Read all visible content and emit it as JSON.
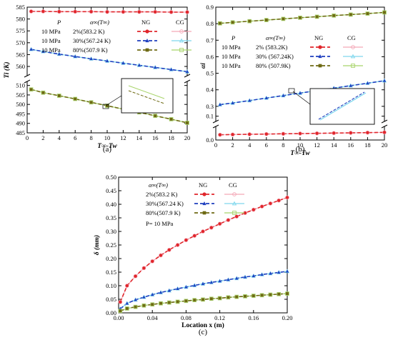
{
  "chart_data": [
    {
      "id": "a",
      "type": "line",
      "caption": "(a)",
      "xlabel": "T∞-Tw",
      "ylabel": "Ti (K)",
      "xlim": [
        0,
        20
      ],
      "xticks": [
        0,
        2,
        4,
        6,
        8,
        10,
        12,
        14,
        16,
        18,
        20
      ],
      "ybreak": true,
      "yticks_upper": [
        560,
        565,
        570,
        575,
        580,
        585
      ],
      "yticks_lower": [
        485,
        490,
        495,
        500,
        505,
        510
      ],
      "legend": {
        "head_p": "P",
        "head_alpha": "α∞(T∞)",
        "head_ng": "NG",
        "head_cg": "CG",
        "rows": [
          {
            "p": "10 MPa",
            "alpha": "2%(583.2 K)"
          },
          {
            "p": "10 MPa",
            "alpha": "30%(567.24 K)"
          },
          {
            "p": "10 MPa",
            "alpha": "80%(507.9 K)"
          }
        ]
      },
      "series": [
        {
          "color": "#e0262b",
          "cg_color": "#f4a9b8",
          "marker": "circle",
          "x": [
            0.5,
            2,
            4,
            6,
            8,
            10,
            12,
            14,
            16,
            18,
            20
          ],
          "y": [
            583.2,
            583.2,
            583.1,
            583.1,
            583.1,
            583.0,
            583.0,
            583.0,
            583.0,
            582.9,
            582.9
          ]
        },
        {
          "color": "#1f3fbf",
          "cg_color": "#7fd8ee",
          "marker": "triangle",
          "x": [
            0.5,
            2,
            4,
            6,
            8,
            10,
            12,
            14,
            16,
            18,
            20
          ],
          "y": [
            567.2,
            566.3,
            565.2,
            564.2,
            563.2,
            562.3,
            561.4,
            560.5,
            559.6,
            558.7,
            557.8
          ]
        },
        {
          "color": "#6e6a14",
          "cg_color": "#a8d46a",
          "marker": "square",
          "x": [
            0.5,
            2,
            4,
            6,
            8,
            10,
            12,
            14,
            16,
            18,
            20
          ],
          "y": [
            507.9,
            506.2,
            504.6,
            502.9,
            501.1,
            499.3,
            497.5,
            495.8,
            494.0,
            492.2,
            490.3
          ]
        }
      ]
    },
    {
      "id": "b",
      "type": "line",
      "caption": "(b)",
      "xlabel": "T∞-Tw",
      "ylabel": "αi",
      "xlim": [
        0,
        20
      ],
      "xticks": [
        0,
        2,
        4,
        6,
        8,
        10,
        12,
        14,
        16,
        18,
        20
      ],
      "ybreak": true,
      "yticks": [
        0.0,
        0.1,
        0.3,
        0.4,
        0.5,
        0.6,
        0.7,
        0.8,
        0.9
      ],
      "legend": {
        "head_p": "P",
        "head_alpha": "α∞(T∞)",
        "head_ng": "NG",
        "head_cg": "CG",
        "rows": [
          {
            "p": "10 MPa",
            "alpha": "2% (583.2K)"
          },
          {
            "p": "10 MPa",
            "alpha": "30% (567.24K)"
          },
          {
            "p": "10 MPa",
            "alpha": "80% (507.9K)"
          }
        ]
      },
      "series": [
        {
          "color": "#e0262b",
          "cg_color": "#f4a9b8",
          "marker": "circle",
          "x": [
            0.5,
            2,
            4,
            6,
            8,
            10,
            12,
            14,
            16,
            18,
            20
          ],
          "y": [
            0.022,
            0.023,
            0.024,
            0.025,
            0.026,
            0.027,
            0.028,
            0.029,
            0.03,
            0.031,
            0.032
          ]
        },
        {
          "color": "#1f3fbf",
          "cg_color": "#7fd8ee",
          "marker": "triangle",
          "x": [
            0.5,
            2,
            4,
            6,
            8,
            10,
            12,
            14,
            16,
            18,
            20
          ],
          "y": [
            0.31,
            0.32,
            0.335,
            0.35,
            0.365,
            0.38,
            0.395,
            0.41,
            0.425,
            0.44,
            0.455
          ]
        },
        {
          "color": "#6e6a14",
          "cg_color": "#a8d46a",
          "marker": "square",
          "x": [
            0.5,
            2,
            4,
            6,
            8,
            10,
            12,
            14,
            16,
            18,
            20
          ],
          "y": [
            0.802,
            0.808,
            0.815,
            0.822,
            0.829,
            0.836,
            0.842,
            0.849,
            0.855,
            0.861,
            0.868
          ]
        }
      ]
    },
    {
      "id": "c",
      "type": "line",
      "caption": "(c)",
      "xlabel": "Location x (m)",
      "ylabel": "δ (mm)",
      "xlim": [
        0,
        0.2
      ],
      "ylim": [
        0,
        0.5
      ],
      "xticks": [
        "0.00",
        "0.04",
        "0.08",
        "0.12",
        "0.16",
        "0.20"
      ],
      "yticks": [
        "0.00",
        "0.05",
        "0.10",
        "0.15",
        "0.20",
        "0.25",
        "0.30",
        "0.35",
        "0.40",
        "0.45",
        "0.50"
      ],
      "legend": {
        "head_alpha": "α∞(T∞)",
        "head_ng": "NG",
        "head_cg": "CG",
        "rows": [
          {
            "alpha": "2%(583.2 K)"
          },
          {
            "alpha": "30%(567.24 K)"
          },
          {
            "alpha": "80%(507.9 K)"
          }
        ],
        "note": "P= 10 MPa"
      },
      "series": [
        {
          "color": "#e0262b",
          "cg_color": "#f4a9b8",
          "marker": "circle",
          "x": [
            0.002,
            0.01,
            0.02,
            0.03,
            0.04,
            0.05,
            0.06,
            0.07,
            0.08,
            0.09,
            0.1,
            0.11,
            0.12,
            0.13,
            0.14,
            0.15,
            0.16,
            0.17,
            0.18,
            0.19,
            0.2
          ],
          "y": [
            0.04,
            0.1,
            0.135,
            0.165,
            0.19,
            0.212,
            0.232,
            0.25,
            0.268,
            0.284,
            0.3,
            0.314,
            0.328,
            0.342,
            0.355,
            0.368,
            0.38,
            0.392,
            0.403,
            0.414,
            0.425
          ]
        },
        {
          "color": "#1f3fbf",
          "cg_color": "#7fd8ee",
          "marker": "triangle",
          "x": [
            0.002,
            0.01,
            0.02,
            0.03,
            0.04,
            0.05,
            0.06,
            0.07,
            0.08,
            0.09,
            0.1,
            0.11,
            0.12,
            0.13,
            0.14,
            0.15,
            0.16,
            0.17,
            0.18,
            0.19,
            0.2
          ],
          "y": [
            0.015,
            0.035,
            0.048,
            0.058,
            0.067,
            0.075,
            0.082,
            0.089,
            0.095,
            0.101,
            0.107,
            0.112,
            0.117,
            0.122,
            0.127,
            0.132,
            0.136,
            0.141,
            0.145,
            0.149,
            0.153
          ]
        },
        {
          "color": "#6e6a14",
          "cg_color": "#a8d46a",
          "marker": "square",
          "x": [
            0.002,
            0.01,
            0.02,
            0.03,
            0.04,
            0.05,
            0.06,
            0.07,
            0.08,
            0.09,
            0.1,
            0.11,
            0.12,
            0.13,
            0.14,
            0.15,
            0.16,
            0.17,
            0.18,
            0.19,
            0.2
          ],
          "y": [
            0.007,
            0.016,
            0.022,
            0.027,
            0.031,
            0.035,
            0.038,
            0.041,
            0.044,
            0.047,
            0.049,
            0.052,
            0.054,
            0.057,
            0.059,
            0.061,
            0.063,
            0.065,
            0.067,
            0.069,
            0.071
          ]
        }
      ]
    }
  ]
}
